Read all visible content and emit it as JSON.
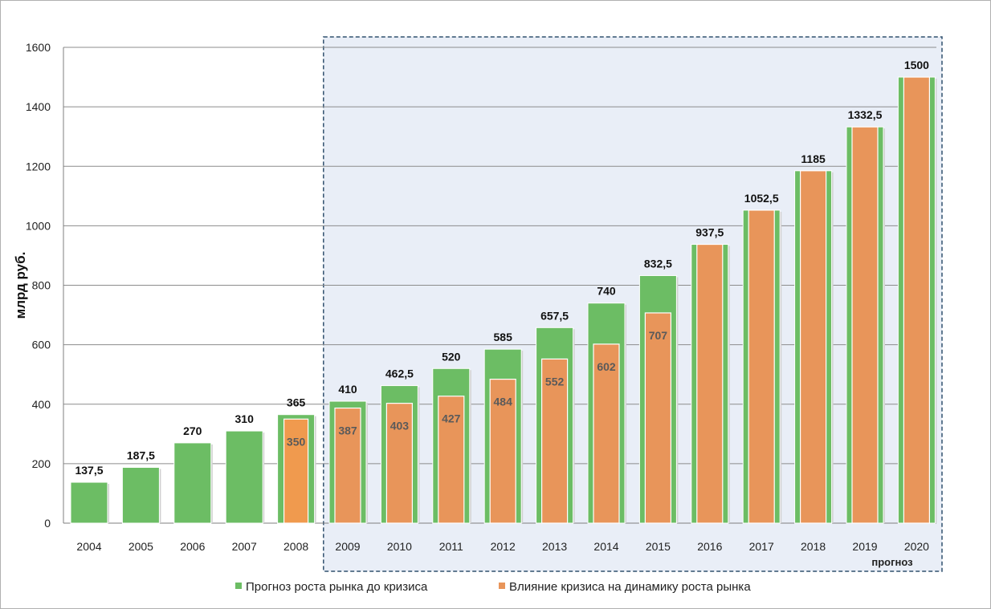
{
  "chart_data": {
    "type": "bar",
    "ylabel": "млрд руб.",
    "ylim": [
      0,
      1600
    ],
    "yticks": [
      0,
      200,
      400,
      600,
      800,
      1000,
      1200,
      1400,
      1600
    ],
    "categories": [
      "2004",
      "2005",
      "2006",
      "2007",
      "2008",
      "2009",
      "2010",
      "2011",
      "2012",
      "2013",
      "2014",
      "2015",
      "2016",
      "2017",
      "2018",
      "2019",
      "2020"
    ],
    "series": [
      {
        "name": "Прогноз роста рынка до кризиса",
        "color": "#6cbd64",
        "values": [
          137.5,
          187.5,
          270,
          310,
          365,
          410,
          462.5,
          520,
          585,
          657.5,
          740,
          832.5,
          937.5,
          1052.5,
          1185,
          1332.5,
          1500
        ],
        "labels": [
          "137,5",
          "187,5",
          "270",
          "310",
          "365",
          "410",
          "462,5",
          "520",
          "585",
          "657,5",
          "740",
          "832,5",
          "937,5",
          "1052,5",
          "1185",
          "1332,5",
          "1500"
        ]
      },
      {
        "name": "Влияние кризиса на динамику роста рынка",
        "color": "#e8955a",
        "values": [
          null,
          null,
          null,
          null,
          350,
          387,
          403,
          427,
          484,
          552,
          602,
          707,
          937.5,
          1052.5,
          1185,
          1332.5,
          1500
        ],
        "labels": [
          "",
          "",
          "",
          "",
          "350",
          "387",
          "403",
          "427",
          "484",
          "552",
          "602",
          "707",
          "",
          "",
          "",
          "",
          ""
        ]
      }
    ],
    "forecast_label": "прогноз",
    "grid": true,
    "legend": "bottom"
  }
}
